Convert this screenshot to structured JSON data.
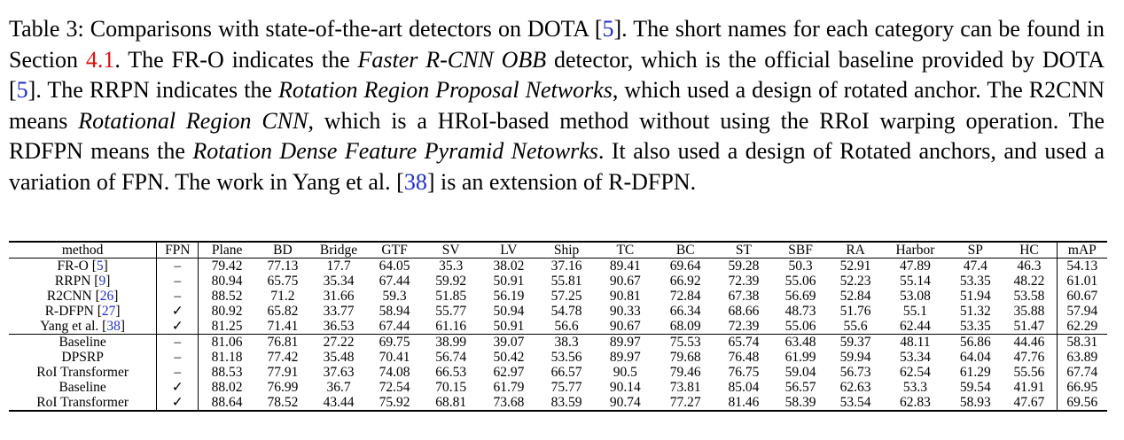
{
  "caption": {
    "label": "Table 3:",
    "s1": " Comparisons with state-of-the-art detectors on DOTA [",
    "r1": "5",
    "s2": "]. The short names for each category can be found in Section ",
    "r2": "4.1",
    "s3": ". The FR-O indicates the ",
    "i1": "Faster R-CNN OBB",
    "s4": " detector, which is the official baseline provided by DOTA [",
    "r3": "5",
    "s5": "]. The RRPN indicates the ",
    "i2": "Rotation Region Proposal Networks",
    "s6": ", which used a design of rotated anchor. The R2CNN means ",
    "i3": "Rotational Region CNN",
    "s7": ", which is a HRoI-based method without using the RRoI warping operation. The RDFPN means the ",
    "i4": "Rotation Dense Feature Pyramid Netowrks",
    "s8": ". It also used a design of Rotated anchors, and used a variation of FPN. The work in Yang et al. [",
    "r4": "38",
    "s9": "] is an extension of R-DFPN."
  },
  "table": {
    "headers": [
      "method",
      "FPN",
      "Plane",
      "BD",
      "Bridge",
      "GTF",
      "SV",
      "LV",
      "Ship",
      "TC",
      "BC",
      "ST",
      "SBF",
      "RA",
      "Harbor",
      "SP",
      "HC",
      "mAP"
    ],
    "group1": [
      {
        "method": "FR-O",
        "ref": "5",
        "fpn": "–",
        "values": [
          "79.42",
          "77.13",
          "17.7",
          "64.05",
          "35.3",
          "38.02",
          "37.16",
          "89.41",
          "69.64",
          "59.28",
          "50.3",
          "52.91",
          "47.89",
          "47.4",
          "46.3",
          "54.13"
        ]
      },
      {
        "method": "RRPN",
        "ref": "9",
        "fpn": "–",
        "values": [
          "80.94",
          "65.75",
          "35.34",
          "67.44",
          "59.92",
          "50.91",
          "55.81",
          "90.67",
          "66.92",
          "72.39",
          "55.06",
          "52.23",
          "55.14",
          "53.35",
          "48.22",
          "61.01"
        ]
      },
      {
        "method": "R2CNN",
        "ref": "26",
        "fpn": "–",
        "values": [
          "88.52",
          "71.2",
          "31.66",
          "59.3",
          "51.85",
          "56.19",
          "57.25",
          "90.81",
          "72.84",
          "67.38",
          "56.69",
          "52.84",
          "53.08",
          "51.94",
          "53.58",
          "60.67"
        ]
      },
      {
        "method": "R-DFPN",
        "ref": "27",
        "fpn": "✓",
        "values": [
          "80.92",
          "65.82",
          "33.77",
          "58.94",
          "55.77",
          "50.94",
          "54.78",
          "90.33",
          "66.34",
          "68.66",
          "48.73",
          "51.76",
          "55.1",
          "51.32",
          "35.88",
          "57.94"
        ]
      },
      {
        "method": "Yang et al.",
        "ref": "38",
        "fpn": "✓",
        "values": [
          "81.25",
          "71.41",
          "36.53",
          "67.44",
          "61.16",
          "50.91",
          "56.6",
          "90.67",
          "68.09",
          "72.39",
          "55.06",
          "55.6",
          "62.44",
          "53.35",
          "51.47",
          "62.29"
        ]
      }
    ],
    "group2": [
      {
        "method": "Baseline",
        "fpn": "–",
        "values": [
          "81.06",
          "76.81",
          "27.22",
          "69.75",
          "38.99",
          "39.07",
          "38.3",
          "89.97",
          "75.53",
          "65.74",
          "63.48",
          "59.37",
          "48.11",
          "56.86",
          "44.46",
          "58.31"
        ],
        "bold": [
          10
        ]
      },
      {
        "method": "DPSRP",
        "fpn": "–",
        "values": [
          "81.18",
          "77.42",
          "35.48",
          "70.41",
          "56.74",
          "50.42",
          "53.56",
          "89.97",
          "79.68",
          "76.48",
          "61.99",
          "59.94",
          "53.34",
          "64.04",
          "47.76",
          "63.89"
        ],
        "bold": [
          8,
          13
        ]
      },
      {
        "method": "RoI Transformer",
        "fpn": "–",
        "values": [
          "88.53",
          "77.91",
          "37.63",
          "74.08",
          "66.53",
          "62.97",
          "66.57",
          "90.5",
          "79.46",
          "76.75",
          "59.04",
          "56.73",
          "62.54",
          "61.29",
          "55.56",
          "67.74"
        ],
        "bold": [
          14
        ]
      },
      {
        "method": "Baseline",
        "fpn": "✓",
        "values": [
          "88.02",
          "76.99",
          "36.7",
          "72.54",
          "70.15",
          "61.79",
          "75.77",
          "90.14",
          "73.81",
          "85.04",
          "56.57",
          "62.63",
          "53.3",
          "59.54",
          "41.91",
          "66.95"
        ],
        "bold": [
          4,
          9,
          11
        ]
      },
      {
        "method": "RoI Transformer",
        "fpn": "✓",
        "values": [
          "88.64",
          "78.52",
          "43.44",
          "75.92",
          "68.81",
          "73.68",
          "83.59",
          "90.74",
          "77.27",
          "81.46",
          "58.39",
          "53.54",
          "62.83",
          "58.93",
          "47.67",
          "69.56"
        ],
        "bold": [
          0,
          1,
          2,
          3,
          5,
          6,
          7,
          12,
          15
        ]
      }
    ]
  }
}
